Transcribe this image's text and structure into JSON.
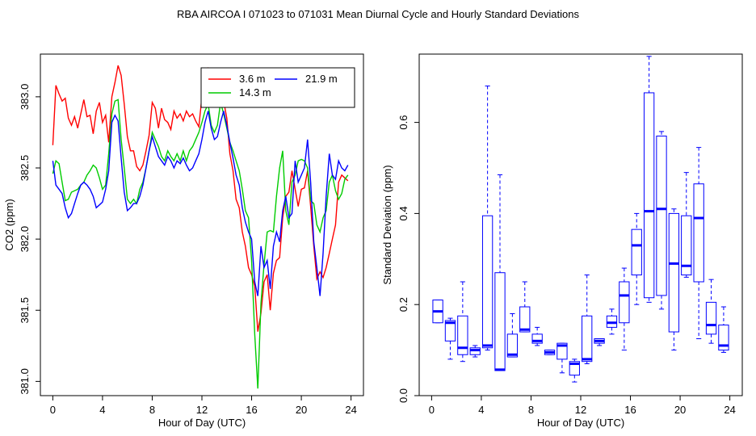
{
  "figure": {
    "title": "RBA   AIRCOA I   071023 to 071031   Mean Diurnal Cycle and Hourly Standard Deviations"
  },
  "chart_data": [
    {
      "type": "line",
      "xlabel": "Hour of Day (UTC)",
      "ylabel": "CO2 (ppm)",
      "xlim": [
        -1,
        25
      ],
      "ylim": [
        380.9,
        383.3
      ],
      "x_ticks": [
        0,
        4,
        8,
        12,
        16,
        20,
        24
      ],
      "y_ticks": [
        381.0,
        381.5,
        382.0,
        382.5,
        383.0
      ],
      "x_tick_labels": [
        "0",
        "4",
        "8",
        "12",
        "16",
        "20",
        "24"
      ],
      "y_tick_labels": [
        "381.0",
        "381.5",
        "382.0",
        "382.5",
        "383.0"
      ],
      "grid": false,
      "legend_position": "top-right",
      "series": [
        {
          "name": "3.6 m",
          "color": "#ff0000",
          "x": [
            0,
            0.25,
            0.5,
            0.75,
            1,
            1.25,
            1.5,
            1.75,
            2,
            2.25,
            2.5,
            2.75,
            3,
            3.25,
            3.5,
            3.75,
            4,
            4.25,
            4.5,
            4.75,
            5,
            5.25,
            5.5,
            5.75,
            6,
            6.25,
            6.5,
            6.75,
            7,
            7.25,
            7.5,
            7.75,
            8,
            8.25,
            8.5,
            8.75,
            9,
            9.25,
            9.5,
            9.75,
            10,
            10.25,
            10.5,
            10.75,
            11,
            11.25,
            11.5,
            11.75,
            12,
            12.25,
            12.5,
            12.75,
            13,
            13.25,
            13.5,
            13.75,
            14,
            14.25,
            14.5,
            14.75,
            15,
            15.25,
            15.5,
            15.75,
            16,
            16.25,
            16.5,
            16.75,
            17,
            17.25,
            17.5,
            17.75,
            18,
            18.25,
            18.5,
            18.75,
            19,
            19.25,
            19.5,
            19.75,
            20,
            20.25,
            20.5,
            20.75,
            21,
            21.25,
            21.5,
            21.75,
            22,
            22.25,
            22.5,
            22.75,
            23,
            23.25,
            23.5,
            23.75
          ],
          "values": [
            382.66,
            383.08,
            383.02,
            382.97,
            382.99,
            382.85,
            382.8,
            382.86,
            382.78,
            382.88,
            382.98,
            382.86,
            382.87,
            382.74,
            382.9,
            382.96,
            382.82,
            382.87,
            382.68,
            383.0,
            383.1,
            383.22,
            383.15,
            382.95,
            382.72,
            382.62,
            382.62,
            382.51,
            382.48,
            382.52,
            382.62,
            382.73,
            382.96,
            382.92,
            382.78,
            382.92,
            382.84,
            382.82,
            382.77,
            382.9,
            382.85,
            382.88,
            382.83,
            382.9,
            382.86,
            382.88,
            382.83,
            382.79,
            383.0,
            383.13,
            383.2,
            383.17,
            383.12,
            383.15,
            383.07,
            382.97,
            382.85,
            382.6,
            382.48,
            382.28,
            382.22,
            382.05,
            381.95,
            381.8,
            381.75,
            381.67,
            381.35,
            381.48,
            381.7,
            381.75,
            381.5,
            381.76,
            381.85,
            381.87,
            382.15,
            382.3,
            382.33,
            382.48,
            382.35,
            382.23,
            382.35,
            382.36,
            382.48,
            382.23,
            381.95,
            381.72,
            381.77,
            381.73,
            381.8,
            381.9,
            382.0,
            382.1,
            382.4,
            382.45,
            382.43,
            382.41
          ]
        },
        {
          "name": "14.3 m",
          "color": "#00cc00",
          "x": [
            0,
            0.25,
            0.5,
            0.75,
            1,
            1.25,
            1.5,
            1.75,
            2,
            2.25,
            2.5,
            2.75,
            3,
            3.25,
            3.5,
            3.75,
            4,
            4.25,
            4.5,
            4.75,
            5,
            5.25,
            5.5,
            5.75,
            6,
            6.25,
            6.5,
            6.75,
            7,
            7.25,
            7.5,
            7.75,
            8,
            8.25,
            8.5,
            8.75,
            9,
            9.25,
            9.5,
            9.75,
            10,
            10.25,
            10.5,
            10.75,
            11,
            11.25,
            11.5,
            11.75,
            12,
            12.25,
            12.5,
            12.75,
            13,
            13.25,
            13.5,
            13.75,
            14,
            14.25,
            14.5,
            14.75,
            15,
            15.25,
            15.5,
            15.75,
            16,
            16.25,
            16.5,
            16.75,
            17,
            17.25,
            17.5,
            17.75,
            18,
            18.25,
            18.5,
            18.75,
            19,
            19.25,
            19.5,
            19.75,
            20,
            20.25,
            20.5,
            20.75,
            21,
            21.25,
            21.5,
            21.75,
            22,
            22.25,
            22.5,
            22.75,
            23,
            23.25,
            23.5,
            23.75
          ],
          "values": [
            382.46,
            382.55,
            382.53,
            382.4,
            382.27,
            382.28,
            382.33,
            382.34,
            382.35,
            382.38,
            382.4,
            382.45,
            382.48,
            382.52,
            382.5,
            382.43,
            382.35,
            382.38,
            382.6,
            382.88,
            382.97,
            382.98,
            382.7,
            382.5,
            382.28,
            382.25,
            382.28,
            382.25,
            382.35,
            382.4,
            382.5,
            382.62,
            382.75,
            382.7,
            382.65,
            382.58,
            382.55,
            382.62,
            382.58,
            382.55,
            382.6,
            382.55,
            382.62,
            382.55,
            382.62,
            382.65,
            382.7,
            382.75,
            382.82,
            382.9,
            382.95,
            382.8,
            382.75,
            382.8,
            382.96,
            382.88,
            382.78,
            382.68,
            382.62,
            382.55,
            382.48,
            382.35,
            382.2,
            382.15,
            381.85,
            381.33,
            380.95,
            381.55,
            381.82,
            382.05,
            382.06,
            382.05,
            382.3,
            382.5,
            382.62,
            382.2,
            382.1,
            382.4,
            382.45,
            382.55,
            382.56,
            382.55,
            382.5,
            382.27,
            382.25,
            382.1,
            382.05,
            382.15,
            382.2,
            382.4,
            382.45,
            382.34,
            382.28,
            382.32,
            382.42,
            382.45
          ]
        },
        {
          "name": "21.9 m",
          "color": "#0000ff",
          "x": [
            0,
            0.25,
            0.5,
            0.75,
            1,
            1.25,
            1.5,
            1.75,
            2,
            2.25,
            2.5,
            2.75,
            3,
            3.25,
            3.5,
            3.75,
            4,
            4.25,
            4.5,
            4.75,
            5,
            5.25,
            5.5,
            5.75,
            6,
            6.25,
            6.5,
            6.75,
            7,
            7.25,
            7.5,
            7.75,
            8,
            8.25,
            8.5,
            8.75,
            9,
            9.25,
            9.5,
            9.75,
            10,
            10.25,
            10.5,
            10.75,
            11,
            11.25,
            11.5,
            11.75,
            12,
            12.25,
            12.5,
            12.75,
            13,
            13.25,
            13.5,
            13.75,
            14,
            14.25,
            14.5,
            14.75,
            15,
            15.25,
            15.5,
            15.75,
            16,
            16.25,
            16.5,
            16.75,
            17,
            17.25,
            17.5,
            17.75,
            18,
            18.25,
            18.5,
            18.75,
            19,
            19.25,
            19.5,
            19.75,
            20,
            20.25,
            20.5,
            20.75,
            21,
            21.25,
            21.5,
            21.75,
            22,
            22.25,
            22.5,
            22.75,
            23,
            23.25,
            23.5,
            23.75
          ],
          "values": [
            382.55,
            382.38,
            382.35,
            382.32,
            382.22,
            382.15,
            382.18,
            382.25,
            382.32,
            382.38,
            382.4,
            382.38,
            382.35,
            382.3,
            382.22,
            382.24,
            382.26,
            382.35,
            382.48,
            382.82,
            382.87,
            382.83,
            382.57,
            382.33,
            382.2,
            382.22,
            382.25,
            382.25,
            382.3,
            382.38,
            382.5,
            382.62,
            382.72,
            382.65,
            382.58,
            382.55,
            382.52,
            382.58,
            382.55,
            382.5,
            382.55,
            382.53,
            382.57,
            382.52,
            382.48,
            382.5,
            382.55,
            382.6,
            382.7,
            382.82,
            382.9,
            382.78,
            382.7,
            382.72,
            382.82,
            382.9,
            382.8,
            382.68,
            382.57,
            382.45,
            382.38,
            382.22,
            382.12,
            382.05,
            382.0,
            381.7,
            381.6,
            381.95,
            381.8,
            381.85,
            381.65,
            381.95,
            382.05,
            381.98,
            382.2,
            382.3,
            382.15,
            382.18,
            382.55,
            382.4,
            382.45,
            382.5,
            382.7,
            382.4,
            381.98,
            381.8,
            381.6,
            381.9,
            382.3,
            382.6,
            382.45,
            382.42,
            382.55,
            382.5,
            382.48,
            382.52
          ]
        }
      ]
    },
    {
      "type": "box",
      "xlabel": "Hour of Day (UTC)",
      "ylabel": "Standard Deviation (ppm)",
      "xlim": [
        -1,
        25
      ],
      "ylim": [
        0.0,
        0.75
      ],
      "x_ticks": [
        0,
        4,
        8,
        12,
        16,
        20,
        24
      ],
      "y_ticks": [
        0.0,
        0.2,
        0.4,
        0.6
      ],
      "x_tick_labels": [
        "0",
        "4",
        "8",
        "12",
        "16",
        "20",
        "24"
      ],
      "y_tick_labels": [
        "0.0",
        "0.2",
        "0.4",
        "0.6"
      ],
      "grid": false,
      "color": "#0000ff",
      "boxes": [
        {
          "hour": 0,
          "min": 0.16,
          "q1": 0.16,
          "median": 0.185,
          "q3": 0.21,
          "max": 0.21
        },
        {
          "hour": 1,
          "min": 0.08,
          "q1": 0.12,
          "median": 0.16,
          "q3": 0.165,
          "max": 0.17
        },
        {
          "hour": 2,
          "min": 0.075,
          "q1": 0.09,
          "median": 0.105,
          "q3": 0.175,
          "max": 0.25
        },
        {
          "hour": 3,
          "min": 0.085,
          "q1": 0.09,
          "median": 0.1,
          "q3": 0.105,
          "max": 0.11
        },
        {
          "hour": 4,
          "min": 0.1,
          "q1": 0.105,
          "median": 0.11,
          "q3": 0.395,
          "max": 0.68
        },
        {
          "hour": 5,
          "min": 0.055,
          "q1": 0.055,
          "median": 0.057,
          "q3": 0.27,
          "max": 0.485
        },
        {
          "hour": 6,
          "min": 0.085,
          "q1": 0.085,
          "median": 0.09,
          "q3": 0.135,
          "max": 0.18
        },
        {
          "hour": 7,
          "min": 0.14,
          "q1": 0.14,
          "median": 0.145,
          "q3": 0.195,
          "max": 0.25
        },
        {
          "hour": 8,
          "min": 0.11,
          "q1": 0.115,
          "median": 0.12,
          "q3": 0.135,
          "max": 0.15
        },
        {
          "hour": 9,
          "min": 0.09,
          "q1": 0.09,
          "median": 0.095,
          "q3": 0.1,
          "max": 0.1
        },
        {
          "hour": 10,
          "min": 0.05,
          "q1": 0.08,
          "median": 0.11,
          "q3": 0.115,
          "max": 0.115
        },
        {
          "hour": 11,
          "min": 0.03,
          "q1": 0.045,
          "median": 0.07,
          "q3": 0.075,
          "max": 0.08
        },
        {
          "hour": 12,
          "min": 0.07,
          "q1": 0.075,
          "median": 0.08,
          "q3": 0.175,
          "max": 0.265
        },
        {
          "hour": 13,
          "min": 0.11,
          "q1": 0.115,
          "median": 0.12,
          "q3": 0.125,
          "max": 0.125
        },
        {
          "hour": 14,
          "min": 0.135,
          "q1": 0.15,
          "median": 0.16,
          "q3": 0.175,
          "max": 0.19
        },
        {
          "hour": 15,
          "min": 0.1,
          "q1": 0.16,
          "median": 0.22,
          "q3": 0.25,
          "max": 0.28
        },
        {
          "hour": 16,
          "min": 0.2,
          "q1": 0.265,
          "median": 0.33,
          "q3": 0.365,
          "max": 0.4
        },
        {
          "hour": 17,
          "min": 0.205,
          "q1": 0.215,
          "median": 0.405,
          "q3": 0.665,
          "max": 0.745
        },
        {
          "hour": 18,
          "min": 0.19,
          "q1": 0.22,
          "median": 0.41,
          "q3": 0.57,
          "max": 0.58
        },
        {
          "hour": 19,
          "min": 0.1,
          "q1": 0.14,
          "median": 0.29,
          "q3": 0.4,
          "max": 0.41
        },
        {
          "hour": 20,
          "min": 0.26,
          "q1": 0.265,
          "median": 0.285,
          "q3": 0.395,
          "max": 0.49
        },
        {
          "hour": 21,
          "min": 0.125,
          "q1": 0.25,
          "median": 0.39,
          "q3": 0.465,
          "max": 0.545
        },
        {
          "hour": 22,
          "min": 0.115,
          "q1": 0.135,
          "median": 0.155,
          "q3": 0.205,
          "max": 0.255
        },
        {
          "hour": 23,
          "min": 0.095,
          "q1": 0.1,
          "median": 0.11,
          "q3": 0.155,
          "max": 0.195
        }
      ]
    }
  ]
}
